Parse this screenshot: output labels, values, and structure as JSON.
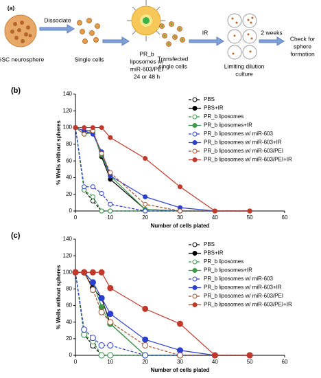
{
  "diagram": {
    "panel": "(a)",
    "steps": [
      {
        "label": [
          "GSC neurosphere"
        ]
      },
      {
        "label": [
          "Single cells"
        ]
      },
      {
        "label": [
          "PR_b",
          "liposomes w/",
          "miR-603/PEI",
          "24 or 48 h"
        ]
      },
      {
        "label": [
          "Transfected",
          "single cells"
        ]
      },
      {
        "label": [
          "Limiting dilution",
          "culture"
        ]
      },
      {
        "label": [
          "Check for",
          "sphere",
          "formation"
        ]
      }
    ],
    "arrows": [
      "Dissociate",
      "IR",
      "2 weeks"
    ]
  },
  "chart_data": [
    {
      "type": "line",
      "panel": "(b)",
      "x_label": "Number of cells plated",
      "y_label": "% Wells without spheres",
      "x": [
        0,
        2.5,
        5,
        7.5,
        10,
        20,
        30,
        40,
        50
      ],
      "xlim": [
        0,
        60
      ],
      "xticks": [
        0,
        10,
        20,
        30,
        40,
        50,
        60
      ],
      "ylim": [
        0,
        140
      ],
      "yticks": [
        0,
        20,
        40,
        60,
        80,
        100,
        120,
        140
      ],
      "legend": "upper right",
      "series": [
        {
          "name": "PBS",
          "color": "#000000",
          "line": "dashed",
          "marker": "open",
          "values": [
            100,
            25,
            12,
            0,
            0,
            0,
            0,
            0,
            0
          ]
        },
        {
          "name": "PBS+IR",
          "color": "#000000",
          "line": "solid",
          "marker": "filled",
          "values": [
            100,
            96,
            96,
            65,
            38,
            2,
            0,
            0,
            0
          ]
        },
        {
          "name": "PR_b liposomes",
          "color": "#3a9a4a",
          "line": "dashed",
          "marker": "open",
          "values": [
            100,
            25,
            17,
            0,
            0,
            0,
            0,
            0,
            0
          ]
        },
        {
          "name": "PR_b liposomes+IR",
          "color": "#3a9a4a",
          "line": "solid",
          "marker": "filled",
          "values": [
            100,
            92,
            94,
            67,
            42,
            2,
            0,
            0,
            0
          ]
        },
        {
          "name": "PR_b liposomes w/ miR-603",
          "color": "#2a3fd0",
          "line": "dashed",
          "marker": "open",
          "values": [
            100,
            29,
            29,
            21,
            8,
            0,
            0,
            0,
            0
          ]
        },
        {
          "name": "PR_b liposomes w/ miR-603+IR",
          "color": "#2a3fd0",
          "line": "solid",
          "marker": "filled",
          "values": [
            100,
            96,
            92,
            71,
            42,
            17,
            4,
            0,
            0
          ]
        },
        {
          "name": "PR_b liposomes w/ miR-603/PEI",
          "color": "#a0522d",
          "line": "dashed",
          "marker": "open",
          "values": [
            100,
            92,
            96,
            69,
            46,
            8,
            0,
            0,
            0
          ]
        },
        {
          "name": "PR_b liposomes w/ miR-603/PEI+IR",
          "color": "#c0392b",
          "line": "solid",
          "marker": "filled",
          "values": [
            100,
            100,
            100,
            100,
            88,
            63,
            29,
            0,
            0
          ]
        }
      ]
    },
    {
      "type": "line",
      "panel": "(c)",
      "x_label": "Number of cells plated",
      "y_label": "% Wells without spheres",
      "x": [
        0,
        2.5,
        5,
        7.5,
        10,
        20,
        30,
        40,
        50
      ],
      "xlim": [
        0,
        60
      ],
      "xticks": [
        0,
        10,
        20,
        30,
        40,
        50,
        60
      ],
      "ylim": [
        0,
        140
      ],
      "yticks": [
        0,
        20,
        40,
        60,
        80,
        100,
        120,
        140
      ],
      "legend": "upper right",
      "series": [
        {
          "name": "PBS",
          "color": "#000000",
          "line": "dashed",
          "marker": "open",
          "values": [
            100,
            25,
            12,
            0,
            0,
            0,
            0,
            0,
            0
          ]
        },
        {
          "name": "PBS+IR",
          "color": "#000000",
          "line": "solid",
          "marker": "filled",
          "values": [
            100,
            100,
            81,
            69,
            38,
            0,
            0,
            0,
            0
          ]
        },
        {
          "name": "PR_b liposomes",
          "color": "#3a9a4a",
          "line": "dashed",
          "marker": "open",
          "values": [
            100,
            25,
            17,
            0,
            0,
            0,
            0,
            0,
            0
          ]
        },
        {
          "name": "PR_b liposomes+IR",
          "color": "#3a9a4a",
          "line": "solid",
          "marker": "filled",
          "values": [
            100,
            100,
            88,
            58,
            38,
            0,
            0,
            0,
            0
          ]
        },
        {
          "name": "PR_b liposomes w/ miR-603",
          "color": "#2a3fd0",
          "line": "dashed",
          "marker": "open",
          "values": [
            100,
            31,
            21,
            12,
            12,
            0,
            0,
            0,
            0
          ]
        },
        {
          "name": "PR_b liposomes w/ miR-603+IR",
          "color": "#2a3fd0",
          "line": "solid",
          "marker": "filled",
          "values": [
            100,
            100,
            88,
            69,
            50,
            19,
            6,
            0,
            0
          ]
        },
        {
          "name": "PR_b liposomes w/ miR-603/PEI",
          "color": "#a0522d",
          "line": "dashed",
          "marker": "open",
          "values": [
            100,
            100,
            79,
            52,
            40,
            12,
            0,
            0,
            0
          ]
        },
        {
          "name": "PR_b liposomes w/ miR-603/PEI+IR",
          "color": "#c0392b",
          "line": "solid",
          "marker": "filled",
          "values": [
            100,
            100,
            100,
            100,
            81,
            56,
            38,
            0,
            0
          ]
        }
      ]
    }
  ]
}
